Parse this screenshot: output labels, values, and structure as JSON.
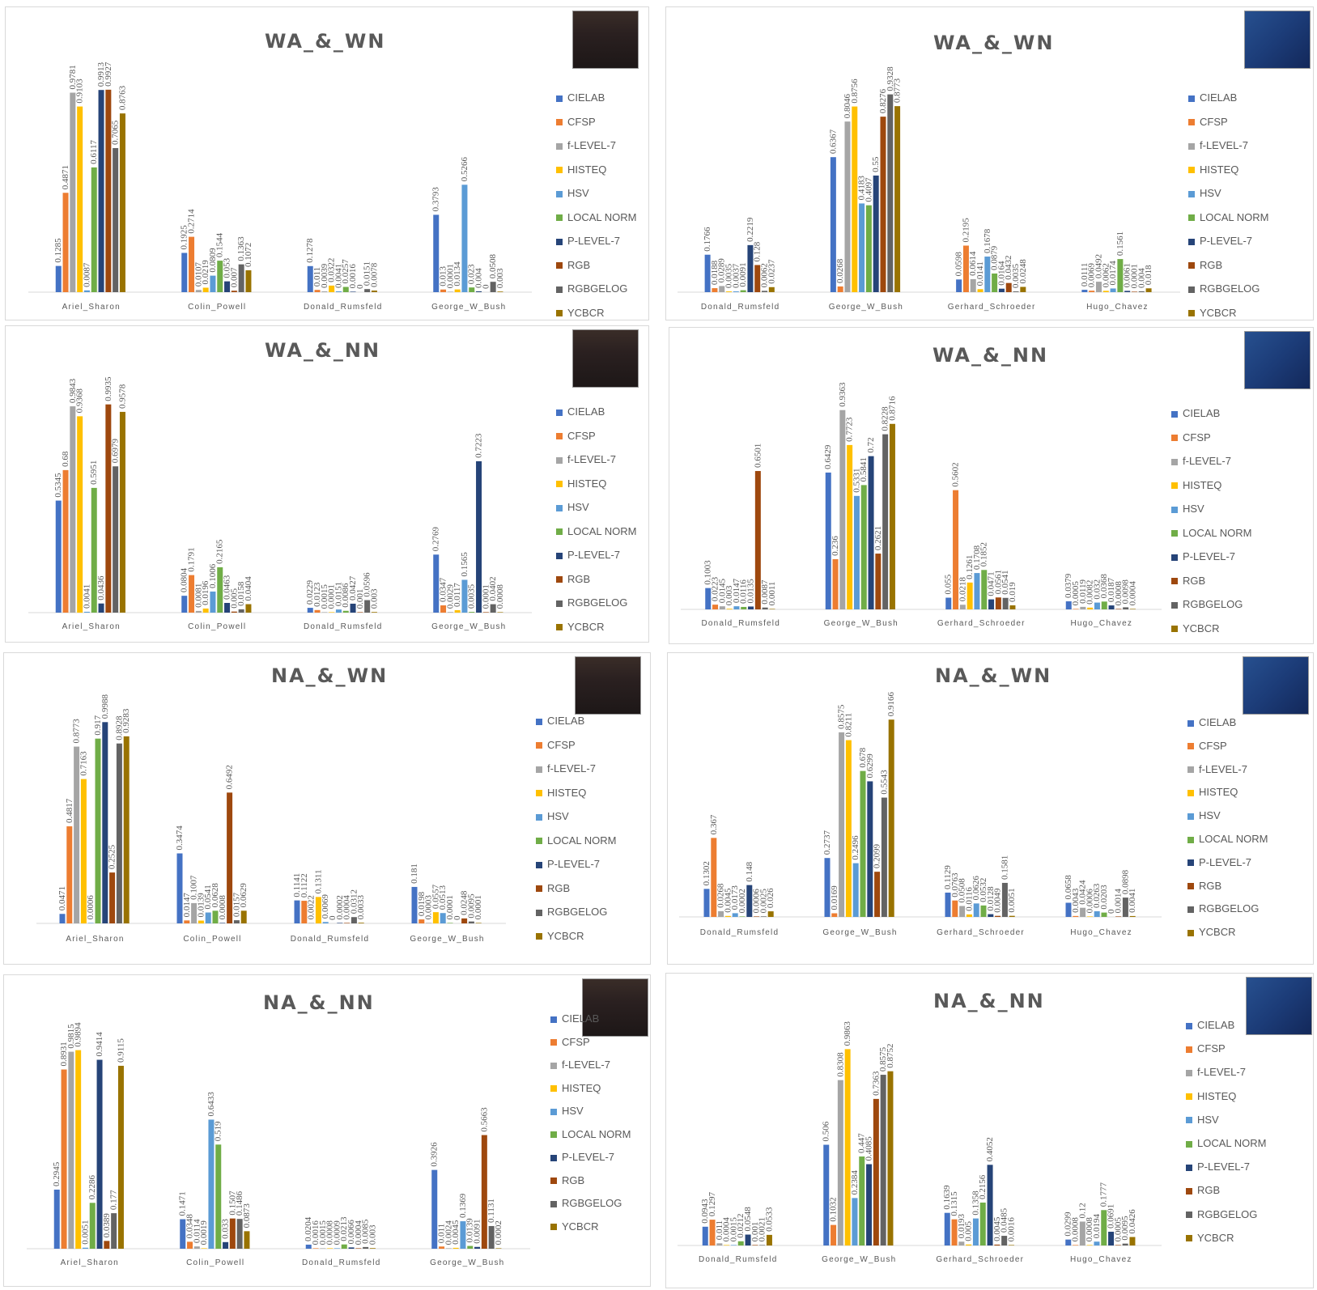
{
  "colors": {
    "CIELAB": "#4472c4",
    "CFSP": "#ed7d31",
    "f-LEVEL-7": "#a5a5a5",
    "HISTEQ": "#ffc000",
    "HSV": "#5b9bd5",
    "LOCAL NORM": "#70ad47",
    "P-LEVEL-7": "#264478",
    "RGB": "#9e480e",
    "RGBGELOG": "#636363",
    "YCBCR": "#997300"
  },
  "legend": [
    "CIELAB",
    "CFSP",
    "f-LEVEL-7",
    "HISTEQ",
    "HSV",
    "LOCAL NORM",
    "P-LEVEL-7",
    "RGB",
    "RGBGELOG",
    "YCBCR"
  ],
  "chart_data": [
    {
      "type": "bar",
      "title": "WA_&_WN",
      "photo": "ariel-sharon-photo",
      "categories": [
        "Ariel_Sharon",
        "Colin_Powell",
        "Donald_Rumsfeld",
        "George_W_Bush"
      ],
      "series": [
        {
          "name": "CIELAB",
          "values": [
            0.1285,
            0.1925,
            0.1278,
            0.3793
          ]
        },
        {
          "name": "CFSP",
          "values": [
            0.4871,
            0.2714,
            0.011,
            0.013
          ]
        },
        {
          "name": "f-LEVEL-7",
          "values": [
            0.9781,
            0.0107,
            0.0039,
            0.0001
          ]
        },
        {
          "name": "HISTEQ",
          "values": [
            0.9103,
            0.0219,
            0.0322,
            0.0134
          ]
        },
        {
          "name": "HSV",
          "values": [
            0.0087,
            0.0809,
            0.0041,
            0.5266
          ]
        },
        {
          "name": "LOCAL NORM",
          "values": [
            0.6117,
            0.1544,
            0.0257,
            0.023
          ]
        },
        {
          "name": "P-LEVEL-7",
          "values": [
            0.9913,
            0.053,
            0.0016,
            0.004
          ]
        },
        {
          "name": "RGB",
          "values": [
            0.9927,
            0.007,
            0,
            0
          ]
        },
        {
          "name": "RGBGELOG",
          "values": [
            0.7065,
            0.1363,
            0.0151,
            0.0508
          ]
        },
        {
          "name": "YCBCR",
          "values": [
            0.8763,
            0.1072,
            0.0078,
            0.003
          ]
        }
      ]
    },
    {
      "type": "bar",
      "title": "WA_&_WN",
      "photo": "george-bush-photo",
      "categories": [
        "Donald_Rumsfeld",
        "George_W_Bush",
        "Gerhard_Schroeder",
        "Hugo_Chavez"
      ],
      "series": [
        {
          "name": "CIELAB",
          "values": [
            0.1766,
            0.6367,
            0.0598,
            0.0111
          ]
        },
        {
          "name": "CFSP",
          "values": [
            0.0188,
            0.0268,
            0.2195,
            0.0069
          ]
        },
        {
          "name": "f-LEVEL-7",
          "values": [
            0.0289,
            0.8046,
            0.0614,
            0.0492
          ]
        },
        {
          "name": "HISTEQ",
          "values": [
            0.0035,
            0.8756,
            0.0141,
            0.0062
          ]
        },
        {
          "name": "HSV",
          "values": [
            0.0037,
            0.4183,
            0.1678,
            0.0174
          ]
        },
        {
          "name": "LOCAL NORM",
          "values": [
            0.0091,
            0.4097,
            0.0879,
            0.1561
          ]
        },
        {
          "name": "P-LEVEL-7",
          "values": [
            0.2219,
            0.55,
            0.0164,
            0.0061
          ]
        },
        {
          "name": "RGB",
          "values": [
            0.128,
            0.8276,
            0.0432,
            0.0001
          ]
        },
        {
          "name": "RGBGELOG",
          "values": [
            0.0062,
            0.9328,
            0.0035,
            0.004
          ]
        },
        {
          "name": "YCBCR",
          "values": [
            0.0237,
            0.8773,
            0.0248,
            0.018
          ]
        }
      ]
    },
    {
      "type": "bar",
      "title": "WA_&_NN",
      "photo": "ariel-sharon-photo",
      "categories": [
        "Ariel_Sharon",
        "Colin_Powell",
        "Donald_Rumsfeld",
        "George_W_Bush"
      ],
      "series": [
        {
          "name": "CIELAB",
          "values": [
            0.5345,
            0.0804,
            0.0229,
            0.2769
          ]
        },
        {
          "name": "CFSP",
          "values": [
            0.68,
            0.1791,
            0.0123,
            0.0347
          ]
        },
        {
          "name": "f-LEVEL-7",
          "values": [
            0.9843,
            0.0081,
            0.0015,
            0.0029
          ]
        },
        {
          "name": "HISTEQ",
          "values": [
            0.9368,
            0.0196,
            0.0001,
            0.0117
          ]
        },
        {
          "name": "HSV",
          "values": [
            0.0041,
            0.1006,
            0.0151,
            0.1565
          ]
        },
        {
          "name": "LOCAL NORM",
          "values": [
            0.5951,
            0.2165,
            0.0086,
            0.0035
          ]
        },
        {
          "name": "P-LEVEL-7",
          "values": [
            0.0436,
            0.0463,
            0.0427,
            0.7223
          ]
        },
        {
          "name": "RGB",
          "values": [
            0.9935,
            0.005,
            0.001,
            0.0001
          ]
        },
        {
          "name": "RGBGELOG",
          "values": [
            0.6979,
            0.0158,
            0.0596,
            0.0402
          ]
        },
        {
          "name": "YCBCR",
          "values": [
            0.9578,
            0.0404,
            0.003,
            0.0008
          ]
        }
      ]
    },
    {
      "type": "bar",
      "title": "WA_&_NN",
      "photo": "george-bush-photo",
      "categories": [
        "Donald_Rumsfeld",
        "George_W_Bush",
        "Gerhard_Schroeder",
        "Hugo_Chavez"
      ],
      "series": [
        {
          "name": "CIELAB",
          "values": [
            0.1003,
            0.6429,
            0.055,
            0.0379
          ]
        },
        {
          "name": "CFSP",
          "values": [
            0.0223,
            0.236,
            0.5602,
            0.0005
          ]
        },
        {
          "name": "f-LEVEL-7",
          "values": [
            0.0145,
            0.9363,
            0.0218,
            0.0119
          ]
        },
        {
          "name": "HISTEQ",
          "values": [
            0.003,
            0.7723,
            0.1261,
            0.0082
          ]
        },
        {
          "name": "HSV",
          "values": [
            0.0147,
            0.5331,
            0.1708,
            0.032
          ]
        },
        {
          "name": "LOCAL NORM",
          "values": [
            0.0116,
            0.5841,
            0.1852,
            0.0368
          ]
        },
        {
          "name": "P-LEVEL-7",
          "values": [
            0.0135,
            0.72,
            0.0471,
            0.0187
          ]
        },
        {
          "name": "RGB",
          "values": [
            0.6501,
            0.2621,
            0.0561,
            0.0008
          ]
        },
        {
          "name": "RGBGELOG",
          "values": [
            0.0087,
            0.8228,
            0.0541,
            0.0098
          ]
        },
        {
          "name": "YCBCR",
          "values": [
            0.0011,
            0.8716,
            0.019,
            0.0004
          ]
        }
      ]
    },
    {
      "type": "bar",
      "title": "NA_&_WN",
      "photo": "ariel-sharon-photo",
      "categories": [
        "Ariel_Sharon",
        "Colin_Powell",
        "Donald_Rumsfeld",
        "George_W_Bush"
      ],
      "series": [
        {
          "name": "CIELAB",
          "values": [
            0.0471,
            0.3474,
            0.1141,
            0.181
          ]
        },
        {
          "name": "CFSP",
          "values": [
            0.4817,
            0.0147,
            0.1122,
            0.0198
          ]
        },
        {
          "name": "f-LEVEL-7",
          "values": [
            0.8773,
            0.1007,
            0.0022,
            0.0003
          ]
        },
        {
          "name": "HISTEQ",
          "values": [
            0.7163,
            0.0139,
            0.1311,
            0.0557
          ]
        },
        {
          "name": "HSV",
          "values": [
            0.0006,
            0.0541,
            0.0069,
            0.0513
          ]
        },
        {
          "name": "LOCAL NORM",
          "values": [
            0.917,
            0.0628,
            0,
            0.0001
          ]
        },
        {
          "name": "P-LEVEL-7",
          "values": [
            0.9988,
            0.0008,
            0.0002,
            0
          ]
        },
        {
          "name": "RGB",
          "values": [
            0.2525,
            0.6492,
            0.0004,
            0.0248
          ]
        },
        {
          "name": "RGBGELOG",
          "values": [
            0.8928,
            0.0157,
            0.0312,
            0.0095
          ]
        },
        {
          "name": "YCBCR",
          "values": [
            0.9283,
            0.0629,
            0.0033,
            0.0001
          ]
        }
      ]
    },
    {
      "type": "bar",
      "title": "NA_&_WN",
      "photo": "george-bush-photo",
      "categories": [
        "Donald_Rumsfeld",
        "George_W_Bush",
        "Gerhard_Schroeder",
        "Hugo_Chavez"
      ],
      "series": [
        {
          "name": "CIELAB",
          "values": [
            0.1302,
            0.2737,
            0.1129,
            0.0658
          ]
        },
        {
          "name": "CFSP",
          "values": [
            0.367,
            0.0169,
            0.0763,
            0.0043
          ]
        },
        {
          "name": "f-LEVEL-7",
          "values": [
            0.0268,
            0.8575,
            0.0508,
            0.0424
          ]
        },
        {
          "name": "HISTEQ",
          "values": [
            0.0045,
            0.8211,
            0.0116,
            0.0006
          ]
        },
        {
          "name": "HSV",
          "values": [
            0.0173,
            0.2496,
            0.0626,
            0.0263
          ]
        },
        {
          "name": "LOCAL NORM",
          "values": [
            0.0002,
            0.678,
            0.0532,
            0.0203
          ]
        },
        {
          "name": "P-LEVEL-7",
          "values": [
            0.148,
            0.6299,
            0.0128,
            0
          ]
        },
        {
          "name": "RGB",
          "values": [
            0.0006,
            0.2099,
            0.0049,
            0.0014
          ]
        },
        {
          "name": "RGBGELOG",
          "values": [
            0.0025,
            0.5543,
            0.1581,
            0.0898
          ]
        },
        {
          "name": "YCBCR",
          "values": [
            0.026,
            0.9166,
            0.0051,
            0.0041
          ]
        }
      ]
    },
    {
      "type": "bar",
      "title": "NA_&_NN",
      "photo": "ariel-sharon-photo",
      "categories": [
        "Ariel_Sharon",
        "Colin_Powell",
        "Donald_Rumsfeld",
        "George_W_Bush"
      ],
      "series": [
        {
          "name": "CIELAB",
          "values": [
            0.2945,
            0.1471,
            0.0204,
            0.3926
          ]
        },
        {
          "name": "CFSP",
          "values": [
            0.8931,
            0.0348,
            0.0016,
            0.011
          ]
        },
        {
          "name": "f-LEVEL-7",
          "values": [
            0.9815,
            0.0114,
            0.0015,
            0.0024
          ]
        },
        {
          "name": "HISTEQ",
          "values": [
            0.9894,
            0.0019,
            0.0008,
            0.0045
          ]
        },
        {
          "name": "HSV",
          "values": [
            0.0051,
            0.6433,
            0.0009,
            0.1369
          ]
        },
        {
          "name": "LOCAL NORM",
          "values": [
            0.2286,
            0.519,
            0.0213,
            0.0139
          ]
        },
        {
          "name": "P-LEVEL-7",
          "values": [
            0.9414,
            0.033,
            0.0066,
            0.0091
          ]
        },
        {
          "name": "RGB",
          "values": [
            0.0389,
            0.1507,
            0.0004,
            0.5663
          ]
        },
        {
          "name": "RGBGELOG",
          "values": [
            0.177,
            0.1486,
            0.0085,
            0.1131
          ]
        },
        {
          "name": "YCBCR",
          "values": [
            0.9115,
            0.0873,
            0.003,
            0.0002
          ]
        }
      ]
    },
    {
      "type": "bar",
      "title": "NA_&_NN",
      "photo": "george-bush-photo",
      "categories": [
        "Donald_Rumsfeld",
        "George_W_Bush",
        "Gerhard_Schroeder",
        "Hugo_Chavez"
      ],
      "series": [
        {
          "name": "CIELAB",
          "values": [
            0.0943,
            0.506,
            0.1639,
            0.0299
          ]
        },
        {
          "name": "CFSP",
          "values": [
            0.1297,
            0.1032,
            0.1315,
            0.0008
          ]
        },
        {
          "name": "f-LEVEL-7",
          "values": [
            0.011,
            0.8308,
            0.0193,
            0.12
          ]
        },
        {
          "name": "HISTEQ",
          "values": [
            0.0004,
            0.9863,
            0.005,
            0.0008
          ]
        },
        {
          "name": "HSV",
          "values": [
            0.0015,
            0.2384,
            0.1358,
            0.0194
          ]
        },
        {
          "name": "LOCAL NORM",
          "values": [
            0.0212,
            0.447,
            0.2156,
            0.1777
          ]
        },
        {
          "name": "P-LEVEL-7",
          "values": [
            0.0548,
            0.4085,
            0.4052,
            0.0691
          ]
        },
        {
          "name": "RGB",
          "values": [
            0.001,
            0.7363,
            0.0045,
            0.0005
          ]
        },
        {
          "name": "RGBGELOG",
          "values": [
            0.0021,
            0.8575,
            0.0485,
            0.0095
          ]
        },
        {
          "name": "YCBCR",
          "values": [
            0.0533,
            0.8752,
            0.0016,
            0.0426
          ]
        }
      ]
    }
  ]
}
